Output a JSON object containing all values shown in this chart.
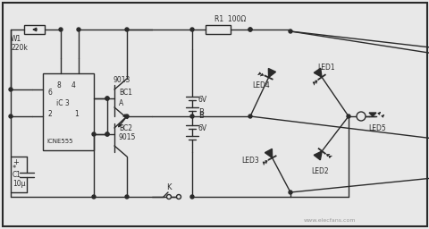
{
  "bg_color": "#e8e8e8",
  "line_color": "#2a2a2a",
  "lw": 1.0,
  "fig_w": 4.81,
  "fig_h": 2.56,
  "dpi": 100,
  "watermark": "www.elecfans.com",
  "border": [
    3,
    3,
    478,
    253
  ]
}
